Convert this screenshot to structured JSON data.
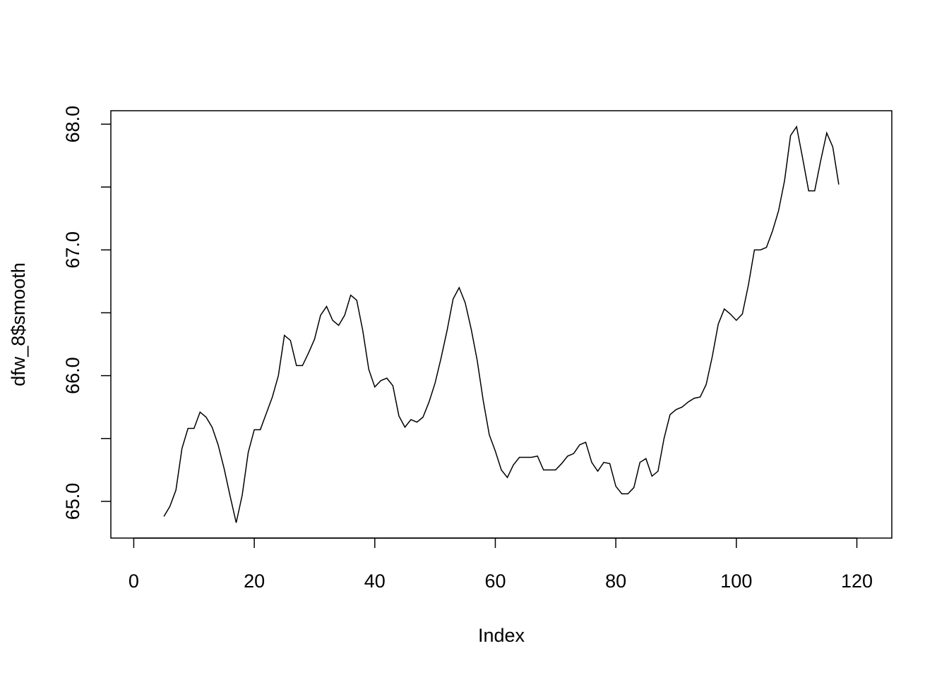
{
  "chart_data": {
    "type": "line",
    "xlabel": "Index",
    "ylabel": "dfw_8$smooth",
    "color": "#000000",
    "x": [
      5,
      6,
      7,
      8,
      9,
      10,
      11,
      12,
      13,
      14,
      15,
      16,
      17,
      18,
      19,
      20,
      21,
      22,
      23,
      24,
      25,
      26,
      27,
      28,
      29,
      30,
      31,
      32,
      33,
      34,
      35,
      36,
      37,
      38,
      39,
      40,
      41,
      42,
      43,
      44,
      45,
      46,
      47,
      48,
      49,
      50,
      51,
      52,
      53,
      54,
      55,
      56,
      57,
      58,
      59,
      60,
      61,
      62,
      63,
      64,
      65,
      66,
      67,
      68,
      69,
      70,
      71,
      72,
      73,
      74,
      75,
      76,
      77,
      78,
      79,
      80,
      81,
      82,
      83,
      84,
      85,
      86,
      87,
      88,
      89,
      90,
      91,
      92,
      93,
      94,
      95,
      96,
      97,
      98,
      99,
      100,
      101,
      102,
      103,
      104,
      105,
      106,
      107,
      108,
      109,
      110,
      111,
      112,
      113,
      114,
      115,
      116,
      117
    ],
    "values": [
      64.88,
      64.96,
      65.09,
      65.42,
      65.58,
      65.58,
      65.71,
      65.67,
      65.59,
      65.45,
      65.26,
      65.04,
      64.83,
      65.05,
      65.39,
      65.57,
      65.57,
      65.7,
      65.83,
      66.0,
      66.32,
      66.28,
      66.08,
      66.08,
      66.18,
      66.29,
      66.48,
      66.55,
      66.44,
      66.4,
      66.48,
      66.64,
      66.6,
      66.36,
      66.05,
      65.91,
      65.96,
      65.98,
      65.92,
      65.68,
      65.59,
      65.65,
      65.63,
      65.67,
      65.79,
      65.94,
      66.14,
      66.36,
      66.61,
      66.7,
      66.58,
      66.37,
      66.12,
      65.8,
      65.53,
      65.4,
      65.25,
      65.19,
      65.29,
      65.35,
      65.35,
      65.35,
      65.36,
      65.25,
      65.25,
      65.25,
      65.3,
      65.36,
      65.38,
      65.45,
      65.47,
      65.31,
      65.24,
      65.31,
      65.3,
      65.12,
      65.06,
      65.06,
      65.11,
      65.31,
      65.34,
      65.2,
      65.24,
      65.5,
      65.69,
      65.73,
      65.75,
      65.79,
      65.82,
      65.83,
      65.93,
      66.15,
      66.41,
      66.53,
      66.49,
      66.44,
      66.49,
      66.72,
      67.0,
      67.0,
      67.02,
      67.15,
      67.31,
      67.55,
      67.91,
      67.98,
      67.73,
      67.47,
      67.47,
      67.71,
      67.93,
      67.82,
      67.52
    ],
    "xlim": [
      -3.8,
      125.8
    ],
    "xticks": [
      0,
      20,
      40,
      60,
      80,
      100,
      120
    ],
    "ylim": [
      64.708,
      68.107
    ],
    "yticks": [
      {
        "value": 65,
        "label": "65.0"
      },
      {
        "value": 65.5,
        "label": null
      },
      {
        "value": 66,
        "label": "66.0"
      },
      {
        "value": 66.5,
        "label": null
      },
      {
        "value": 67,
        "label": "67.0"
      },
      {
        "value": 67.5,
        "label": null
      },
      {
        "value": 68,
        "label": "68.0"
      }
    ]
  }
}
